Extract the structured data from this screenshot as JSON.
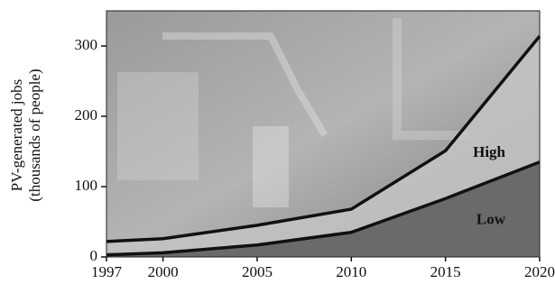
{
  "chart_data": {
    "type": "area",
    "y_label": [
      "PV-generated jobs",
      "(thousands of people)"
    ],
    "x": [
      1997,
      2000,
      2005,
      2010,
      2015,
      2020
    ],
    "series": [
      {
        "name": "High",
        "color": "#c4c4c4",
        "values": [
          22,
          26,
          45,
          68,
          151,
          314
        ]
      },
      {
        "name": "Low",
        "color": "#6a6a6a",
        "values": [
          3,
          6,
          17,
          35,
          83,
          135
        ]
      }
    ],
    "xlim": [
      1997,
      2020
    ],
    "xticks": [
      1997,
      2000,
      2005,
      2010,
      2015,
      2020
    ],
    "ylim": [
      0,
      350
    ],
    "yticks": [
      0,
      100,
      200,
      300
    ]
  }
}
